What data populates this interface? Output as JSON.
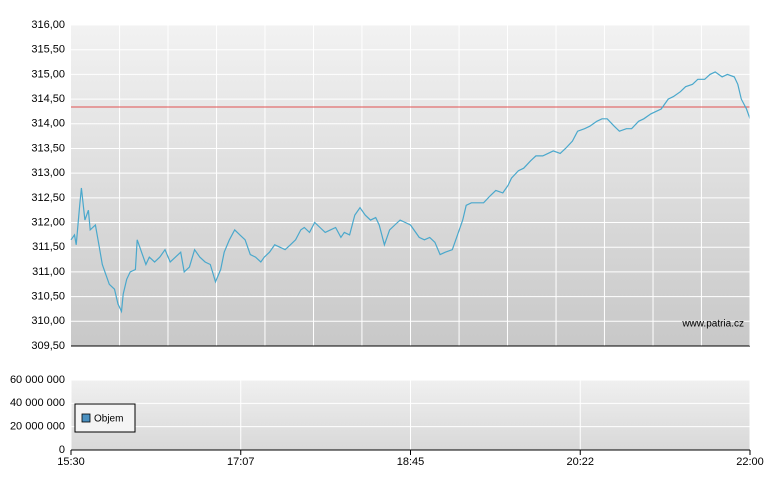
{
  "chart_data": [
    {
      "type": "line",
      "xlim": [
        930,
        1320
      ],
      "xgrid": [
        957.9,
        985.7,
        1013.6,
        1041.4,
        1069.3,
        1097.1,
        1125,
        1152.9,
        1180.7,
        1208.6,
        1236.4,
        1264.3,
        1292.1
      ],
      "ylim": [
        309.5,
        316
      ],
      "yticks": [
        {
          "value": 309.5,
          "label": "309,50"
        },
        {
          "value": 310,
          "label": "310,00"
        },
        {
          "value": 310.5,
          "label": "310,50"
        },
        {
          "value": 311,
          "label": "311,00"
        },
        {
          "value": 311.5,
          "label": "311,50"
        },
        {
          "value": 312,
          "label": "312,00"
        },
        {
          "value": 312.5,
          "label": "312,50"
        },
        {
          "value": 313,
          "label": "313,00"
        },
        {
          "value": 313.5,
          "label": "313,50"
        },
        {
          "value": 314,
          "label": "314,00"
        },
        {
          "value": 314.5,
          "label": "314,50"
        },
        {
          "value": 315,
          "label": "315,00"
        },
        {
          "value": 315.5,
          "label": "315,50"
        },
        {
          "value": 316,
          "label": "316,00"
        }
      ],
      "grid": true,
      "ref_line": {
        "value": 314.34,
        "color": "#e05050"
      },
      "annotation": "www.patria.cz",
      "series": [
        {
          "color": "#4aa8cc",
          "x": [
            930,
            932,
            933,
            935,
            936,
            938,
            940,
            941,
            944,
            946,
            948,
            950,
            952,
            955,
            957,
            959,
            960,
            962,
            964,
            967,
            968,
            971,
            973,
            975,
            978,
            981,
            984,
            987,
            990,
            993,
            995,
            998,
            1001,
            1004,
            1007,
            1010,
            1013,
            1016,
            1018,
            1021,
            1024,
            1027,
            1030,
            1033,
            1036,
            1039,
            1041,
            1044,
            1047,
            1050,
            1053,
            1056,
            1059,
            1062,
            1064,
            1067,
            1070,
            1073,
            1076,
            1079,
            1082,
            1085,
            1087,
            1090,
            1093,
            1096,
            1099,
            1102,
            1105,
            1107,
            1110,
            1113,
            1116,
            1119,
            1122,
            1125,
            1128,
            1130,
            1133,
            1136,
            1139,
            1142,
            1145,
            1149,
            1152,
            1155,
            1157,
            1160,
            1164,
            1167,
            1171,
            1174,
            1178,
            1181,
            1183,
            1187,
            1190,
            1194,
            1197,
            1201,
            1204,
            1207,
            1211,
            1214,
            1218,
            1221,
            1225,
            1228,
            1232,
            1235,
            1238,
            1242,
            1245,
            1249,
            1252,
            1256,
            1259,
            1263,
            1266,
            1269,
            1273,
            1276,
            1280,
            1283,
            1287,
            1290,
            1294,
            1297,
            1300,
            1304,
            1307,
            1311,
            1313,
            1315,
            1318,
            1320
          ],
          "values": [
            311.65,
            311.75,
            311.55,
            312.35,
            312.7,
            312.05,
            312.25,
            311.85,
            311.95,
            311.55,
            311.15,
            310.95,
            310.75,
            310.65,
            310.35,
            310.2,
            310.55,
            310.85,
            311.0,
            311.05,
            311.65,
            311.35,
            311.15,
            311.3,
            311.2,
            311.3,
            311.45,
            311.2,
            311.3,
            311.4,
            311.0,
            311.1,
            311.45,
            311.3,
            311.2,
            311.15,
            310.8,
            311.05,
            311.4,
            311.65,
            311.85,
            311.75,
            311.65,
            311.35,
            311.3,
            311.2,
            311.3,
            311.4,
            311.55,
            311.5,
            311.45,
            311.55,
            311.65,
            311.85,
            311.9,
            311.8,
            312.0,
            311.9,
            311.8,
            311.85,
            311.9,
            311.7,
            311.8,
            311.75,
            312.15,
            312.3,
            312.15,
            312.05,
            312.1,
            311.95,
            311.55,
            311.85,
            311.95,
            312.05,
            312.0,
            311.95,
            311.8,
            311.7,
            311.65,
            311.7,
            311.6,
            311.35,
            311.4,
            311.45,
            311.75,
            312.05,
            312.35,
            312.4,
            312.4,
            312.4,
            312.55,
            312.65,
            312.6,
            312.75,
            312.9,
            313.05,
            313.1,
            313.25,
            313.35,
            313.35,
            313.4,
            313.45,
            313.4,
            313.5,
            313.65,
            313.85,
            313.9,
            313.95,
            314.05,
            314.1,
            314.1,
            313.95,
            313.85,
            313.9,
            313.9,
            314.05,
            314.1,
            314.2,
            314.25,
            314.3,
            314.5,
            314.55,
            314.65,
            314.75,
            314.8,
            314.9,
            314.9,
            315.0,
            315.05,
            314.95,
            315.0,
            314.95,
            314.8,
            314.5,
            314.3,
            314.1
          ]
        }
      ]
    },
    {
      "type": "bar",
      "xlim": [
        930,
        1320
      ],
      "xticks": [
        {
          "value": 930,
          "label": "15:30"
        },
        {
          "value": 1027.5,
          "label": "17:07"
        },
        {
          "value": 1125,
          "label": "18:45"
        },
        {
          "value": 1222.5,
          "label": "20:22"
        },
        {
          "value": 1320,
          "label": "22:00"
        }
      ],
      "ylim": [
        0,
        60000000
      ],
      "yticks": [
        {
          "value": 0,
          "label": "0"
        },
        {
          "value": 20000000,
          "label": "20 000 000"
        },
        {
          "value": 40000000,
          "label": "40 000 000"
        },
        {
          "value": 60000000,
          "label": "60 000 000"
        }
      ],
      "grid": true,
      "series": [
        {
          "name": "Objem",
          "color": "#4a90c0"
        }
      ]
    }
  ]
}
